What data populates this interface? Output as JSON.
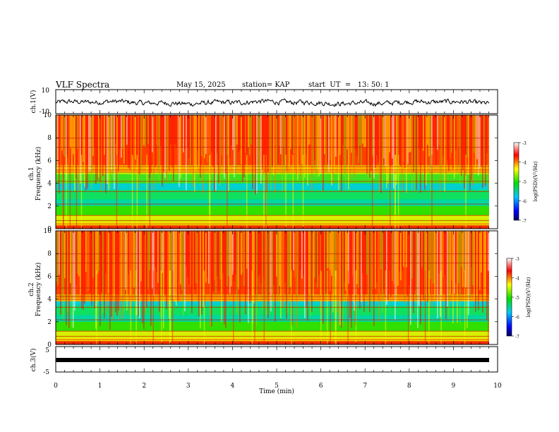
{
  "header": {
    "title": "VLF Spectra",
    "date": "May 15, 2025",
    "station": "station= KAP",
    "start": "start  UT  =   13: 50: 1"
  },
  "chart_data": [
    {
      "type": "line",
      "name": "ch1-waveform",
      "ylabel": "ch.1(V)",
      "ylim": [
        -10,
        10
      ],
      "yticks": [
        "10",
        "-10"
      ],
      "xlim": [
        0,
        10
      ],
      "description_values": "noisy waveform oscillating roughly between -2 and 2 V"
    },
    {
      "type": "heatmap",
      "name": "ch1-spectrogram",
      "ylabel": "ch.1\nFrequency (kHz)",
      "ylabel_lines": [
        "ch.1",
        "Frequency (kHz)"
      ],
      "ylim": [
        0,
        10
      ],
      "yticks": [
        "0",
        "2",
        "4",
        "6",
        "8",
        "10"
      ],
      "colorbar": {
        "label": "log(PSD)(V²/Hz)",
        "min": -7,
        "max": -3,
        "ticks": [
          "-3",
          "-4",
          "-5",
          "-6",
          "-7"
        ]
      }
    },
    {
      "type": "heatmap",
      "name": "ch2-spectrogram",
      "ylabel": "ch.2\nFrequency (kHz)",
      "ylabel_lines": [
        "ch.2",
        "Frequency (kHz)"
      ],
      "ylim": [
        0,
        10
      ],
      "yticks": [
        "0",
        "2",
        "4",
        "6",
        "8",
        "10"
      ],
      "colorbar": {
        "label": "log(PSD)(V²/Hz)",
        "min": -7,
        "max": -3,
        "ticks": [
          "-3",
          "-4",
          "-5",
          "-6",
          "-7"
        ]
      }
    },
    {
      "type": "line",
      "name": "ch3-waveform",
      "ylabel": "ch.3(V)",
      "ylim": [
        -5,
        5
      ],
      "yticks": [
        "5",
        "-5"
      ],
      "xlim": [
        0,
        10
      ],
      "xlabel": "Time (min)",
      "xticks": [
        "0",
        "1",
        "2",
        "3",
        "4",
        "5",
        "6",
        "7",
        "8",
        "9",
        "10"
      ],
      "description_values": "nearly flat thick band near -1 V"
    }
  ],
  "colors": {
    "low": "#000080",
    "mid_low": "#00c8ff",
    "mid": "#00e000",
    "mid_high": "#ffff00",
    "high": "#ff0000"
  }
}
